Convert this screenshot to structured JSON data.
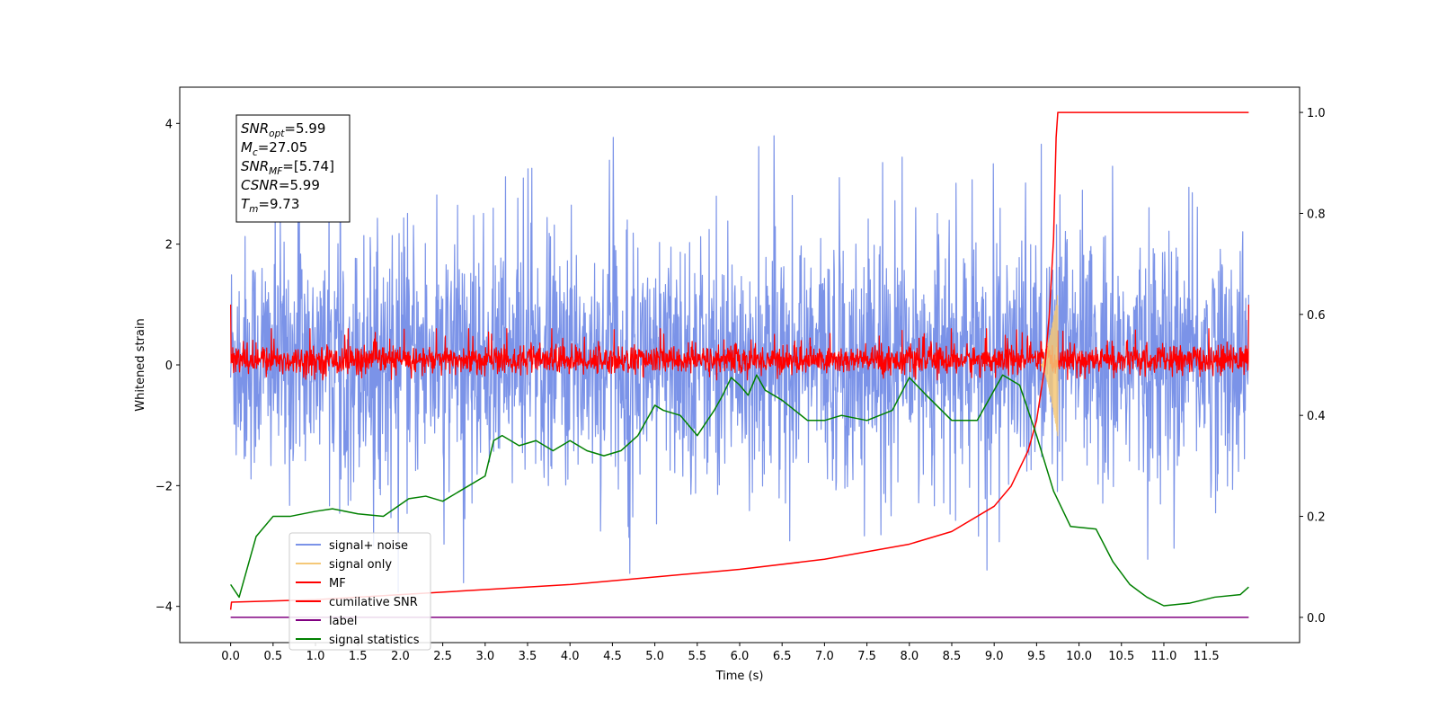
{
  "chart_data": {
    "type": "line",
    "xlabel": "Time (s)",
    "ylabel": "Whitened strain",
    "xlim": [
      -0.6,
      12.6
    ],
    "ylim_left": [
      -4.6,
      4.6
    ],
    "ylim_right": [
      -0.05,
      1.05
    ],
    "x_ticks": [
      "0.0",
      "0.5",
      "1.0",
      "1.5",
      "2.0",
      "2.5",
      "3.0",
      "3.5",
      "4.0",
      "4.5",
      "5.0",
      "5.5",
      "6.0",
      "6.5",
      "7.0",
      "7.5",
      "8.0",
      "8.5",
      "9.0",
      "9.5",
      "10.0",
      "10.5",
      "11.0",
      "11.5"
    ],
    "y_ticks_left": [
      "−4",
      "−2",
      "0",
      "2",
      "4"
    ],
    "y_ticks_right": [
      "0.0",
      "0.2",
      "0.4",
      "0.6",
      "0.8",
      "1.0"
    ],
    "info_box": [
      {
        "sym": "SNR",
        "sub": "opt",
        "val": "=5.99"
      },
      {
        "sym": "M",
        "sub": "c",
        "val": "=27.05"
      },
      {
        "sym": "SNR",
        "sub": "MF",
        "val": "=[5.74]"
      },
      {
        "sym": "CSNR",
        "sub": "",
        "val": "=5.99"
      },
      {
        "sym": "T",
        "sub": "m",
        "val": "=9.73"
      }
    ],
    "legend": {
      "placement": "lower-left",
      "entries": [
        {
          "label": "signal+ noise",
          "color": "#7b93e8"
        },
        {
          "label": "signal only",
          "color": "#f5c878"
        },
        {
          "label": "MF",
          "color": "#ff0000"
        },
        {
          "label": "cumilative SNR",
          "color": "#ff0000"
        },
        {
          "label": "label",
          "color": "#800080"
        },
        {
          "label": "signal statistics",
          "color": "#008000"
        }
      ]
    },
    "series": [
      {
        "name": "signal+ noise",
        "axis": "left",
        "color": "#7b93e8",
        "kind": "noise",
        "x_range": [
          0,
          12
        ],
        "band": [
          -1.8,
          2.0
        ],
        "peak_max": 4.18,
        "peak_min": -4.05
      },
      {
        "name": "MF",
        "axis": "left",
        "color": "#ff0000",
        "kind": "noise",
        "x_range": [
          0,
          12
        ],
        "band": [
          -0.25,
          0.6
        ],
        "end_spikes": 1.0
      },
      {
        "name": "signal only",
        "axis": "left",
        "color": "#f5c878",
        "kind": "chirp",
        "x_range": [
          9.55,
          9.75
        ],
        "amplitude": 1.2
      },
      {
        "name": "cumilative SNR",
        "axis": "right",
        "x": [
          0.0,
          0.01,
          1.0,
          2.0,
          3.0,
          4.0,
          5.0,
          6.0,
          7.0,
          7.5,
          8.0,
          8.5,
          9.0,
          9.2,
          9.4,
          9.5,
          9.6,
          9.65,
          9.7,
          9.73,
          9.75,
          10.0,
          12.0
        ],
        "y": [
          0.015,
          0.03,
          0.035,
          0.045,
          0.055,
          0.065,
          0.08,
          0.095,
          0.115,
          0.13,
          0.145,
          0.17,
          0.22,
          0.26,
          0.33,
          0.39,
          0.5,
          0.6,
          0.75,
          0.95,
          1.0,
          1.0,
          1.0
        ]
      },
      {
        "name": "label",
        "axis": "right",
        "x": [
          0.0,
          12.0
        ],
        "y": [
          0.0,
          0.0
        ]
      },
      {
        "name": "signal statistics",
        "axis": "right",
        "x": [
          0.0,
          0.1,
          0.15,
          0.3,
          0.5,
          0.7,
          1.0,
          1.2,
          1.5,
          1.8,
          2.1,
          2.3,
          2.5,
          2.7,
          3.0,
          3.1,
          3.2,
          3.4,
          3.6,
          3.8,
          4.0,
          4.2,
          4.4,
          4.6,
          4.8,
          5.0,
          5.1,
          5.3,
          5.5,
          5.7,
          5.8,
          5.9,
          6.0,
          6.1,
          6.2,
          6.3,
          6.5,
          6.8,
          7.0,
          7.2,
          7.5,
          7.8,
          8.0,
          8.2,
          8.5,
          8.8,
          9.0,
          9.1,
          9.3,
          9.5,
          9.7,
          9.9,
          10.2,
          10.4,
          10.6,
          10.8,
          11.0,
          11.3,
          11.6,
          11.9,
          12.0
        ],
        "y": [
          0.065,
          0.04,
          0.07,
          0.16,
          0.2,
          0.2,
          0.21,
          0.215,
          0.205,
          0.2,
          0.235,
          0.24,
          0.23,
          0.25,
          0.28,
          0.35,
          0.36,
          0.34,
          0.35,
          0.33,
          0.35,
          0.33,
          0.32,
          0.33,
          0.36,
          0.42,
          0.41,
          0.4,
          0.36,
          0.41,
          0.44,
          0.475,
          0.46,
          0.44,
          0.48,
          0.45,
          0.43,
          0.39,
          0.39,
          0.4,
          0.39,
          0.41,
          0.475,
          0.44,
          0.39,
          0.39,
          0.45,
          0.48,
          0.46,
          0.36,
          0.25,
          0.18,
          0.175,
          0.11,
          0.065,
          0.04,
          0.023,
          0.028,
          0.04,
          0.045,
          0.06
        ]
      }
    ]
  }
}
